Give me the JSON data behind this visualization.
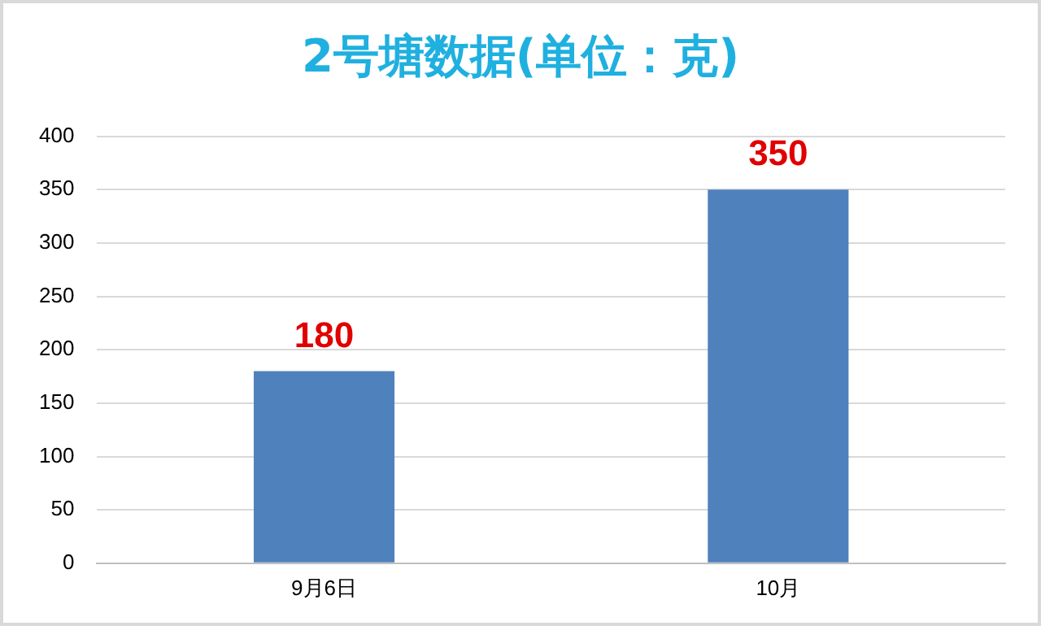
{
  "chart_data": {
    "type": "bar",
    "title": "2号塘数据(单位：克)",
    "categories": [
      "9月6日",
      "10月"
    ],
    "values": [
      180,
      350
    ],
    "color": "#4f81bd",
    "ylim": [
      0,
      400
    ],
    "yticks": [
      0,
      50,
      100,
      150,
      200,
      250,
      300,
      350,
      400
    ],
    "grid": "y",
    "data_labels": true,
    "legend": false
  }
}
